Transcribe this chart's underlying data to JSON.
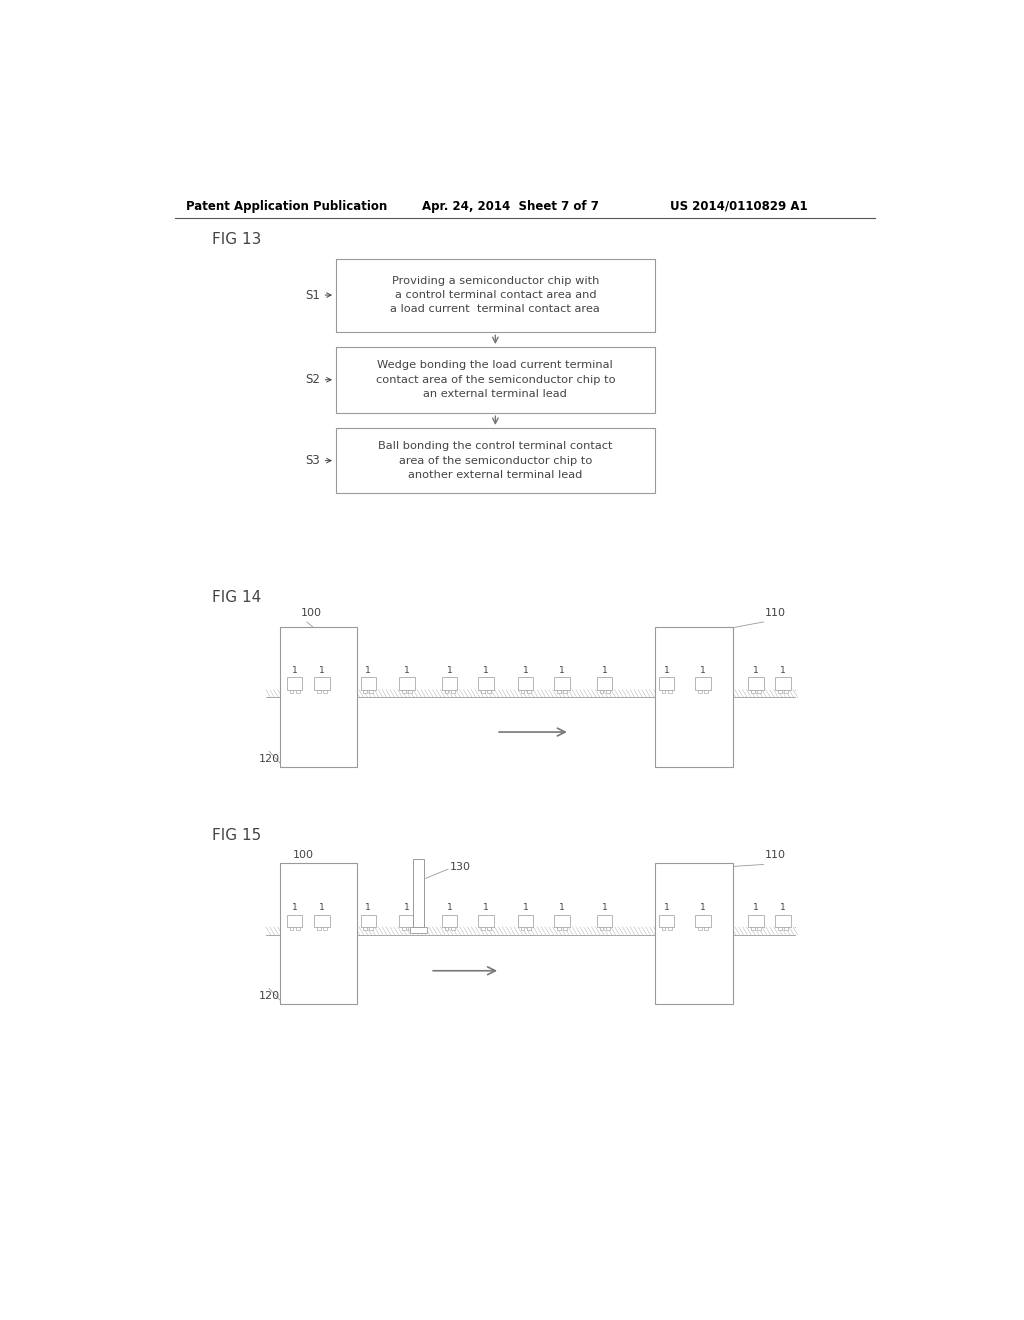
{
  "bg_color": "#ffffff",
  "header_left": "Patent Application Publication",
  "header_mid": "Apr. 24, 2014  Sheet 7 of 7",
  "header_right": "US 2014/0110829 A1",
  "fig13_label": "FIG 13",
  "fig14_label": "FIG 14",
  "fig15_label": "FIG 15",
  "box1_text": "Providing a semiconductor chip with\na control terminal contact area and\na load current  terminal contact area",
  "box2_text": "Wedge bonding the load current terminal\ncontact area of the semiconductor chip to\nan external terminal lead",
  "box3_text": "Ball bonding the control terminal contact\narea of the semiconductor chip to\nanother external terminal lead",
  "s1_label": "S1",
  "s2_label": "S2",
  "s3_label": "S3",
  "label_100": "100",
  "label_110": "110",
  "label_120": "120",
  "label_130": "130",
  "label_1": "1",
  "line_color": "#999999",
  "box_edge_color": "#999999",
  "text_color": "#444444",
  "arrow_color": "#777777"
}
